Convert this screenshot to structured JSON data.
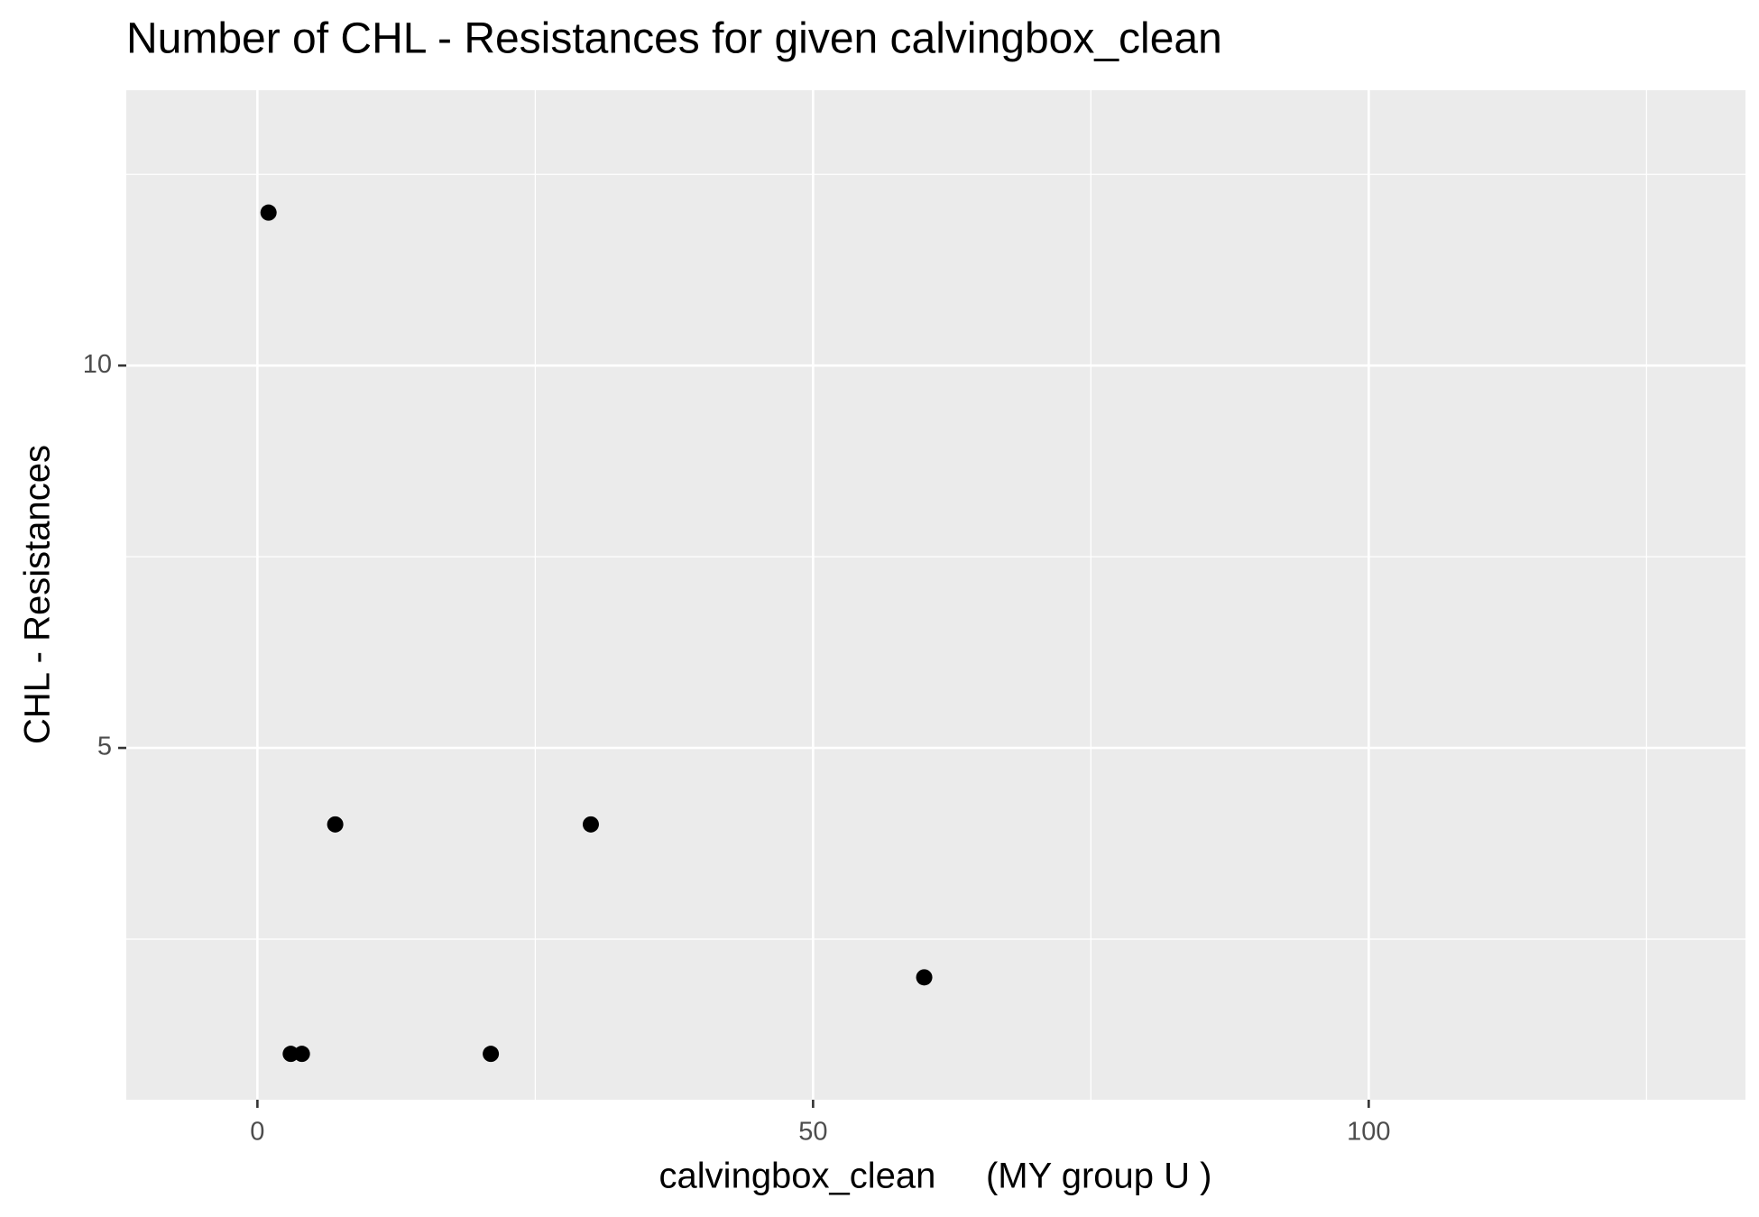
{
  "chart_data": {
    "type": "scatter",
    "title": "Number of CHL - Resistances for given calvingbox_clean",
    "x_label": "calvingbox_clean     (MY group U )",
    "y_label": "CHL - Resistances",
    "x": [
      1,
      3,
      4,
      7,
      21,
      30,
      60
    ],
    "values": [
      12,
      1,
      1,
      4,
      1,
      4,
      2
    ],
    "color": "#000000",
    "xlim": [
      -11.8,
      133.9
    ],
    "ylim": [
      0.4,
      13.6
    ],
    "xticks": [
      0,
      50,
      100
    ],
    "yticks": [
      5,
      10
    ],
    "x_minor_grid": [
      25,
      75,
      125
    ],
    "y_minor_grid": [
      2.5,
      7.5,
      12.5
    ],
    "grid": true
  }
}
